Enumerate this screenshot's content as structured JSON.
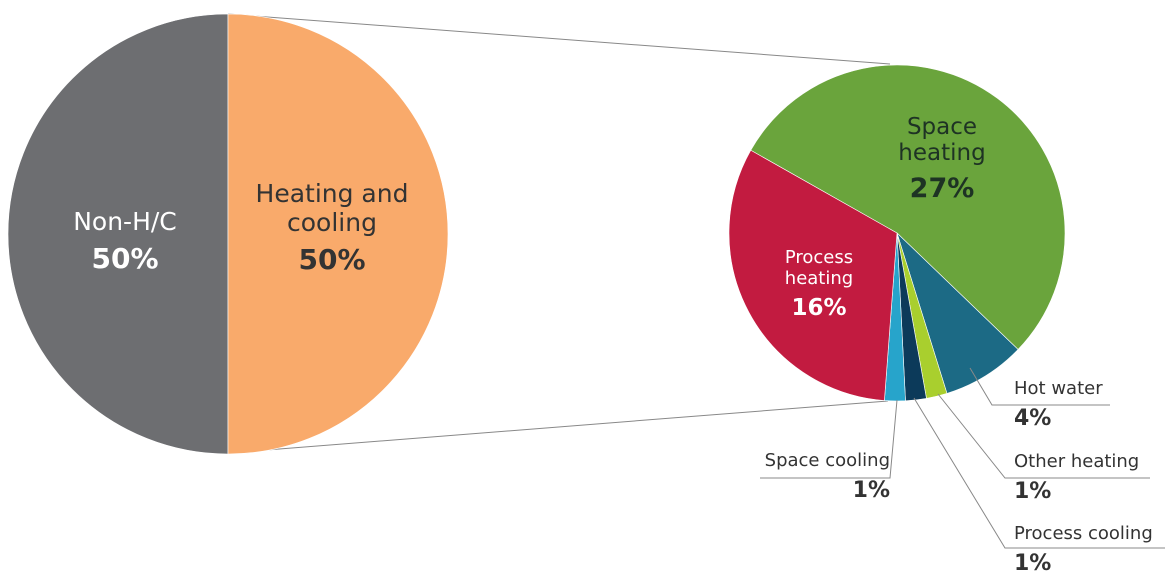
{
  "chart_data": [
    {
      "type": "pie",
      "categories": [
        "Non-H/C",
        "Heating and cooling"
      ],
      "values": [
        50,
        50
      ],
      "value_labels": [
        "50%",
        "50%"
      ],
      "colors": [
        "#6d6e71",
        "#f9aa6b"
      ]
    },
    {
      "type": "pie",
      "categories": [
        "Space heating",
        "Hot water",
        "Other heating",
        "Process cooling",
        "Space cooling",
        "Process heating"
      ],
      "values": [
        27,
        4,
        1,
        1,
        1,
        16
      ],
      "value_labels": [
        "27%",
        "4%",
        "1%",
        "1%",
        "1%",
        "16%"
      ],
      "colors": [
        "#6aa43c",
        "#1c6a85",
        "#a9cf2e",
        "#0c3a5a",
        "#27a4cb",
        "#c21b40"
      ]
    }
  ]
}
